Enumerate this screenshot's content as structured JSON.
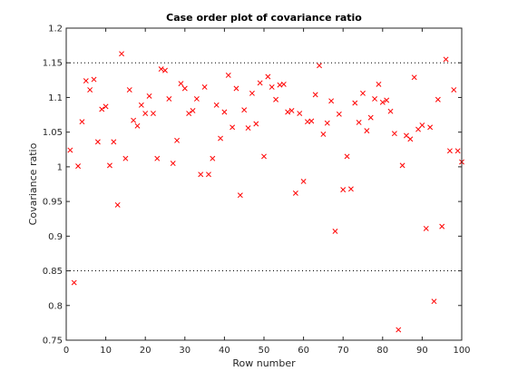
{
  "chart_data": {
    "type": "scatter",
    "title": "Case order plot of covariance ratio",
    "xlabel": "Row number",
    "ylabel": "Covariance ratio",
    "xlim": [
      0,
      100
    ],
    "ylim": [
      0.75,
      1.2
    ],
    "xticks": [
      0,
      10,
      20,
      30,
      40,
      50,
      60,
      70,
      80,
      90,
      100
    ],
    "yticks": [
      0.75,
      0.8,
      0.85,
      0.9,
      0.95,
      1,
      1.05,
      1.1,
      1.15,
      1.2
    ],
    "xtick_labels": [
      "0",
      "10",
      "20",
      "30",
      "40",
      "50",
      "60",
      "70",
      "80",
      "90",
      "100"
    ],
    "ytick_labels": [
      "0.75",
      "0.8",
      "0.85",
      "0.9",
      "0.95",
      "1",
      "1.05",
      "1.1",
      "1.15",
      "1.2"
    ],
    "reference_lines": [
      0.85,
      1.15
    ],
    "marker": "x",
    "marker_color": "#ff0000",
    "grid": false,
    "x": [
      1,
      2,
      3,
      4,
      5,
      6,
      7,
      8,
      9,
      10,
      11,
      12,
      13,
      14,
      15,
      16,
      17,
      18,
      19,
      20,
      21,
      22,
      23,
      24,
      25,
      26,
      27,
      28,
      29,
      30,
      31,
      32,
      33,
      34,
      35,
      36,
      37,
      38,
      39,
      40,
      41,
      42,
      43,
      44,
      45,
      46,
      47,
      48,
      49,
      50,
      51,
      52,
      53,
      54,
      55,
      56,
      57,
      58,
      59,
      60,
      61,
      62,
      63,
      64,
      65,
      66,
      67,
      68,
      69,
      70,
      71,
      72,
      73,
      74,
      75,
      76,
      77,
      78,
      79,
      80,
      81,
      82,
      83,
      84,
      85,
      86,
      87,
      88,
      89,
      90,
      91,
      92,
      93,
      94,
      95,
      96,
      97,
      98,
      99,
      100
    ],
    "y": [
      1.024,
      0.833,
      1.001,
      1.065,
      1.124,
      1.111,
      1.126,
      1.036,
      1.083,
      1.087,
      1.002,
      1.036,
      0.945,
      1.163,
      1.012,
      1.111,
      1.067,
      1.059,
      1.089,
      1.077,
      1.102,
      1.077,
      1.012,
      1.141,
      1.139,
      1.098,
      1.005,
      1.038,
      1.12,
      1.113,
      1.077,
      1.081,
      1.098,
      0.989,
      1.115,
      0.989,
      1.012,
      1.089,
      1.041,
      1.079,
      1.132,
      1.057,
      1.113,
      0.959,
      1.082,
      1.056,
      1.106,
      1.062,
      1.121,
      1.015,
      1.13,
      1.115,
      1.097,
      1.118,
      1.119,
      1.079,
      1.081,
      0.962,
      1.077,
      0.979,
      1.065,
      1.066,
      1.104,
      1.146,
      1.047,
      1.063,
      1.095,
      0.907,
      1.076,
      0.967,
      1.015,
      0.968,
      1.092,
      1.064,
      1.106,
      1.052,
      1.071,
      1.098,
      1.119,
      1.093,
      1.096,
      1.08,
      1.048,
      0.765,
      1.002,
      1.045,
      1.04,
      1.129,
      1.054,
      1.06,
      0.911,
      1.057,
      0.806,
      1.097,
      0.914,
      1.155,
      1.023,
      1.111,
      1.023,
      1.007
    ]
  }
}
